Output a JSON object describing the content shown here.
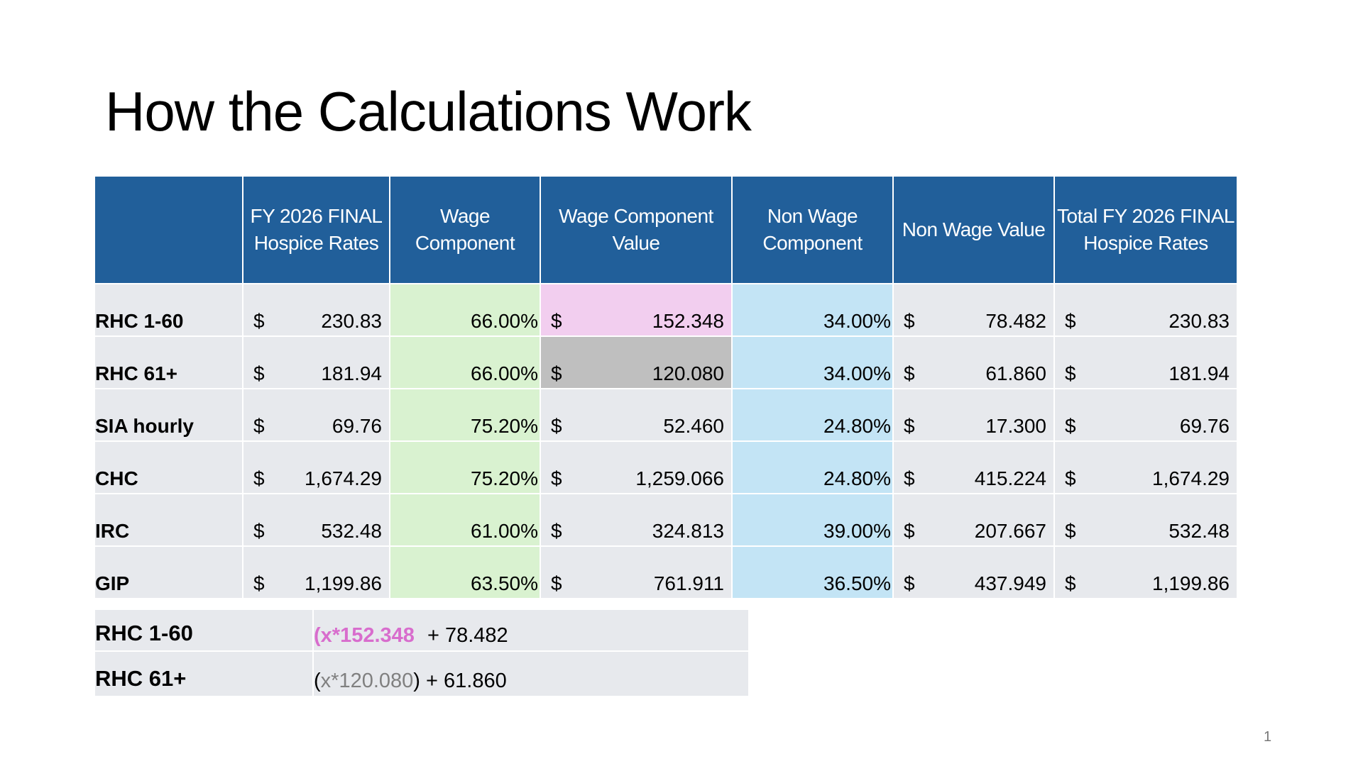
{
  "title": "How the Calculations Work",
  "table": {
    "headers": [
      "",
      "FY 2026 FINAL Hospice Rates",
      "Wage Component",
      "Wage Component Value",
      "Non Wage Component",
      "Non Wage Value",
      "Total FY 2026 FINAL Hospice Rates"
    ],
    "currency_symbol": "$",
    "rows": [
      {
        "label": "RHC 1-60",
        "rate": "230.83",
        "wage_pct": "66.00%",
        "wage_value": "152.348",
        "nonwage_pct": "34.00%",
        "nonwage_value": "78.482",
        "total": "230.83",
        "highlight": "pink"
      },
      {
        "label": "RHC 61+",
        "rate": "181.94",
        "wage_pct": "66.00%",
        "wage_value": "120.080",
        "nonwage_pct": "34.00%",
        "nonwage_value": "61.860",
        "total": "181.94",
        "highlight": "gray"
      },
      {
        "label": "SIA hourly",
        "rate": "69.76",
        "wage_pct": "75.20%",
        "wage_value": "52.460",
        "nonwage_pct": "24.80%",
        "nonwage_value": "17.300",
        "total": "69.76",
        "highlight": ""
      },
      {
        "label": "CHC",
        "rate": "1,674.29",
        "wage_pct": "75.20%",
        "wage_value": "1,259.066",
        "nonwage_pct": "24.80%",
        "nonwage_value": "415.224",
        "total": "1,674.29",
        "highlight": ""
      },
      {
        "label": "IRC",
        "rate": "532.48",
        "wage_pct": "61.00%",
        "wage_value": "324.813",
        "nonwage_pct": "39.00%",
        "nonwage_value": "207.667",
        "total": "532.48",
        "highlight": ""
      },
      {
        "label": "GIP",
        "rate": "1,199.86",
        "wage_pct": "63.50%",
        "wage_value": "761.911",
        "nonwage_pct": "36.50%",
        "nonwage_value": "437.949",
        "total": "1,199.86",
        "highlight": ""
      }
    ]
  },
  "formulas": [
    {
      "label": "RHC 1-60",
      "open": "",
      "term": "(x*152.348",
      "close": "",
      "rest": " + 78.482",
      "style": "pink"
    },
    {
      "label": "RHC 61+",
      "open": "(",
      "term": "x*120.080",
      "close": ")",
      "rest": " + 61.860",
      "style": "gray"
    }
  ],
  "page_number": "1",
  "colors": {
    "header": "#215F9A",
    "row": "#E7E9ED",
    "wage": "#D9F2D0",
    "nonwage": "#C3E4F5",
    "pink": "#F2CEEF",
    "gray": "#BFBFBF",
    "pink_text": "#D86DCD"
  }
}
